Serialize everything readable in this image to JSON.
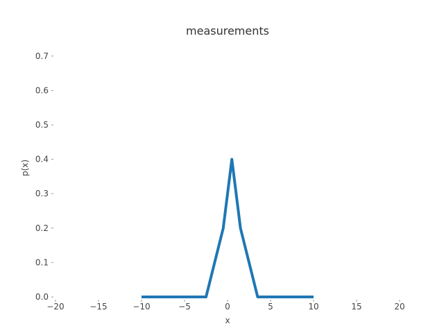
{
  "chart_data": {
    "type": "line",
    "title": "measurements",
    "xlabel": "x",
    "ylabel": "p(x)",
    "xlim": [
      -20,
      20
    ],
    "ylim": [
      0,
      0.75
    ],
    "xticks": [
      -20,
      -15,
      -10,
      -5,
      0,
      5,
      10,
      15,
      20
    ],
    "xtick_labels": [
      "−20",
      "−15",
      "−10",
      "−5",
      "0",
      "5",
      "10",
      "15",
      "20"
    ],
    "yticks": [
      0.0,
      0.1,
      0.2,
      0.3,
      0.4,
      0.5,
      0.6,
      0.7
    ],
    "ytick_labels": [
      "0.0",
      "0.1",
      "0.2",
      "0.3",
      "0.4",
      "0.5",
      "0.6",
      "0.7"
    ],
    "grid": false,
    "series": [
      {
        "color": "#1f77b4",
        "x": [
          -10,
          -2.5,
          -0.5,
          0.5,
          1.5,
          3.5,
          10
        ],
        "y": [
          0.0,
          0.0,
          0.2,
          0.4,
          0.2,
          0.0,
          0.0
        ]
      }
    ]
  }
}
